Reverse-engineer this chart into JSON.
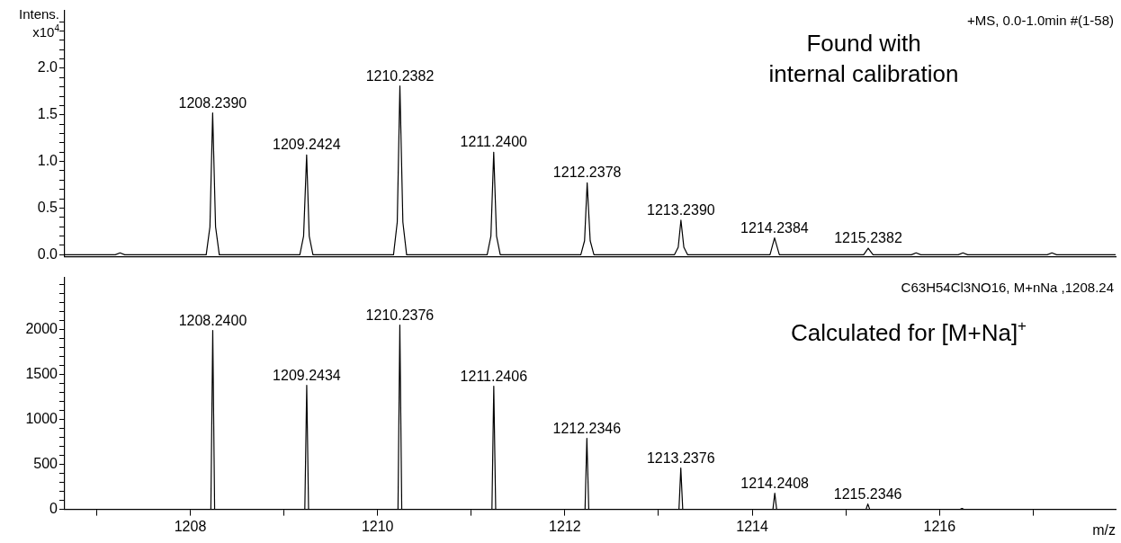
{
  "chart_data": [
    {
      "type": "line",
      "ylabel": "Intens.\nx10$^{4}$",
      "tick_labels": "y",
      "grid": false,
      "legend": false,
      "xlim": [
        1206.66,
        1217.88
      ],
      "ylim": [
        -0.02,
        2.62
      ],
      "yticks": [
        {
          "value": 0,
          "label": "0.0"
        },
        {
          "value": 0.1,
          "label": null
        },
        {
          "value": 0.2,
          "label": null
        },
        {
          "value": 0.3,
          "label": null
        },
        {
          "value": 0.4,
          "label": null
        },
        0.5,
        {
          "value": 0.6,
          "label": null
        },
        {
          "value": 0.7,
          "label": null
        },
        {
          "value": 0.8,
          "label": null
        },
        {
          "value": 0.9,
          "label": null
        },
        {
          "value": 1,
          "label": "1.0"
        },
        {
          "value": 1.1,
          "label": null
        },
        {
          "value": 1.2,
          "label": null
        },
        {
          "value": 1.3,
          "label": null
        },
        {
          "value": 1.4,
          "label": null
        },
        1.5,
        {
          "value": 1.6,
          "label": null
        },
        {
          "value": 1.7,
          "label": null
        },
        {
          "value": 1.8,
          "label": null
        },
        {
          "value": 1.9,
          "label": null
        },
        {
          "value": 2,
          "label": "2.0"
        },
        {
          "value": 2.1,
          "label": null
        },
        {
          "value": 2.2,
          "label": null
        },
        {
          "value": 2.3,
          "label": null
        },
        {
          "value": 2.4,
          "label": null
        },
        {
          "value": 2.5,
          "label": null
        }
      ],
      "series": [
        {
          "color": "#000000",
          "x": [
            1206.66,
            1207.2,
            1207.25,
            1207.3,
            1208.17,
            1208.21,
            1208.239,
            1208.27,
            1208.31,
            1209.17,
            1209.21,
            1209.2424,
            1209.27,
            1209.31,
            1210.17,
            1210.21,
            1210.2382,
            1210.27,
            1210.31,
            1211.17,
            1211.21,
            1211.24,
            1211.27,
            1211.31,
            1212.17,
            1212.21,
            1212.2378,
            1212.27,
            1212.31,
            1213.17,
            1213.21,
            1213.239,
            1213.27,
            1213.31,
            1214.19,
            1214.2384,
            1214.29,
            1215.19,
            1215.2382,
            1215.29,
            1215.7,
            1215.75,
            1215.8,
            1216.2,
            1216.25,
            1216.3,
            1217.15,
            1217.2,
            1217.25,
            1217.88
          ],
          "values": [
            0,
            0,
            0.02,
            0,
            0,
            0.3,
            1.52,
            0.3,
            0,
            0,
            0.2,
            1.07,
            0.2,
            0,
            0,
            0.35,
            1.81,
            0.35,
            0,
            0,
            0.2,
            1.1,
            0.2,
            0,
            0,
            0.15,
            0.77,
            0.15,
            0,
            0,
            0.08,
            0.37,
            0.08,
            0,
            0,
            0.18,
            0,
            0,
            0.07,
            0,
            0,
            0.02,
            0,
            0,
            0.02,
            0,
            0,
            0.02,
            0,
            0
          ]
        }
      ],
      "annotations": [
        "+MS, 0.0-1.0min #(1-58)",
        "Found with\ninternal calibration",
        {
          "text": "1208.2390",
          "x": 1208.239,
          "y": 1.52
        },
        {
          "text": "1209.2424",
          "x": 1209.2424,
          "y": 1.07
        },
        {
          "text": "1210.2382",
          "x": 1210.2382,
          "y": 1.81
        },
        {
          "text": "1211.2400",
          "x": 1211.24,
          "y": 1.1
        },
        {
          "text": "1212.2378",
          "x": 1212.2378,
          "y": 0.77
        },
        {
          "text": "1213.2390",
          "x": 1213.239,
          "y": 0.37
        },
        {
          "text": "1214.2384",
          "x": 1214.2384,
          "y": 0.18
        },
        {
          "text": "1215.2382",
          "x": 1215.2382,
          "y": 0.07
        }
      ]
    },
    {
      "type": "line",
      "xlabel": "m/z",
      "grid": false,
      "legend": false,
      "xlim": [
        1206.66,
        1217.88
      ],
      "xticks": [
        {
          "value": 1207,
          "label": null
        },
        1208,
        {
          "value": 1209,
          "label": null
        },
        1210,
        {
          "value": 1211,
          "label": null
        },
        1212,
        {
          "value": 1213,
          "label": null
        },
        1214,
        {
          "value": 1215,
          "label": null
        },
        1216,
        {
          "value": 1217,
          "label": null
        }
      ],
      "ylim": [
        0,
        2580
      ],
      "yticks": [
        0,
        {
          "value": 100,
          "label": null
        },
        {
          "value": 200,
          "label": null
        },
        {
          "value": 300,
          "label": null
        },
        {
          "value": 400,
          "label": null
        },
        500,
        {
          "value": 600,
          "label": null
        },
        {
          "value": 700,
          "label": null
        },
        {
          "value": 800,
          "label": null
        },
        {
          "value": 900,
          "label": null
        },
        1000,
        {
          "value": 1100,
          "label": null
        },
        {
          "value": 1200,
          "label": null
        },
        {
          "value": 1300,
          "label": null
        },
        {
          "value": 1400,
          "label": null
        },
        1500,
        {
          "value": 1600,
          "label": null
        },
        {
          "value": 1700,
          "label": null
        },
        {
          "value": 1800,
          "label": null
        },
        {
          "value": 1900,
          "label": null
        },
        2000,
        {
          "value": 2100,
          "label": null
        },
        {
          "value": 2200,
          "label": null
        },
        {
          "value": 2300,
          "label": null
        },
        {
          "value": 2400,
          "label": null
        },
        {
          "value": 2500,
          "label": null
        }
      ],
      "series": [
        {
          "color": "#000000",
          "x": [
            1206.66,
            1208.22,
            1208.24,
            1208.26,
            1209.223,
            1209.2434,
            1209.263,
            1210.218,
            1210.2376,
            1210.258,
            1211.221,
            1211.2406,
            1211.261,
            1212.215,
            1212.2346,
            1212.255,
            1213.218,
            1213.2376,
            1213.258,
            1214.221,
            1214.2408,
            1214.261,
            1215.215,
            1215.2346,
            1215.255,
            1216.22,
            1216.24,
            1216.26,
            1217.88
          ],
          "values": [
            0,
            0,
            1990,
            0,
            0,
            1380,
            0,
            0,
            2050,
            0,
            0,
            1370,
            0,
            0,
            790,
            0,
            0,
            460,
            0,
            0,
            180,
            0,
            0,
            60,
            0,
            0,
            10,
            0,
            0
          ]
        }
      ],
      "annotations": [
        "C63H54Cl3NO16, M+nNa ,1208.24",
        "Calculated for [M+Na]$^{+}$",
        {
          "text": "1208.2400",
          "x": 1208.24,
          "y": 1990
        },
        {
          "text": "1209.2434",
          "x": 1209.2434,
          "y": 1380
        },
        {
          "text": "1210.2376",
          "x": 1210.2376,
          "y": 2050
        },
        {
          "text": "1211.2406",
          "x": 1211.2406,
          "y": 1370
        },
        {
          "text": "1212.2346",
          "x": 1212.2346,
          "y": 790
        },
        {
          "text": "1213.2376",
          "x": 1213.2376,
          "y": 460
        },
        {
          "text": "1214.2408",
          "x": 1214.2408,
          "y": 180
        },
        {
          "text": "1215.2346",
          "x": 1215.2346,
          "y": 60
        }
      ]
    }
  ]
}
